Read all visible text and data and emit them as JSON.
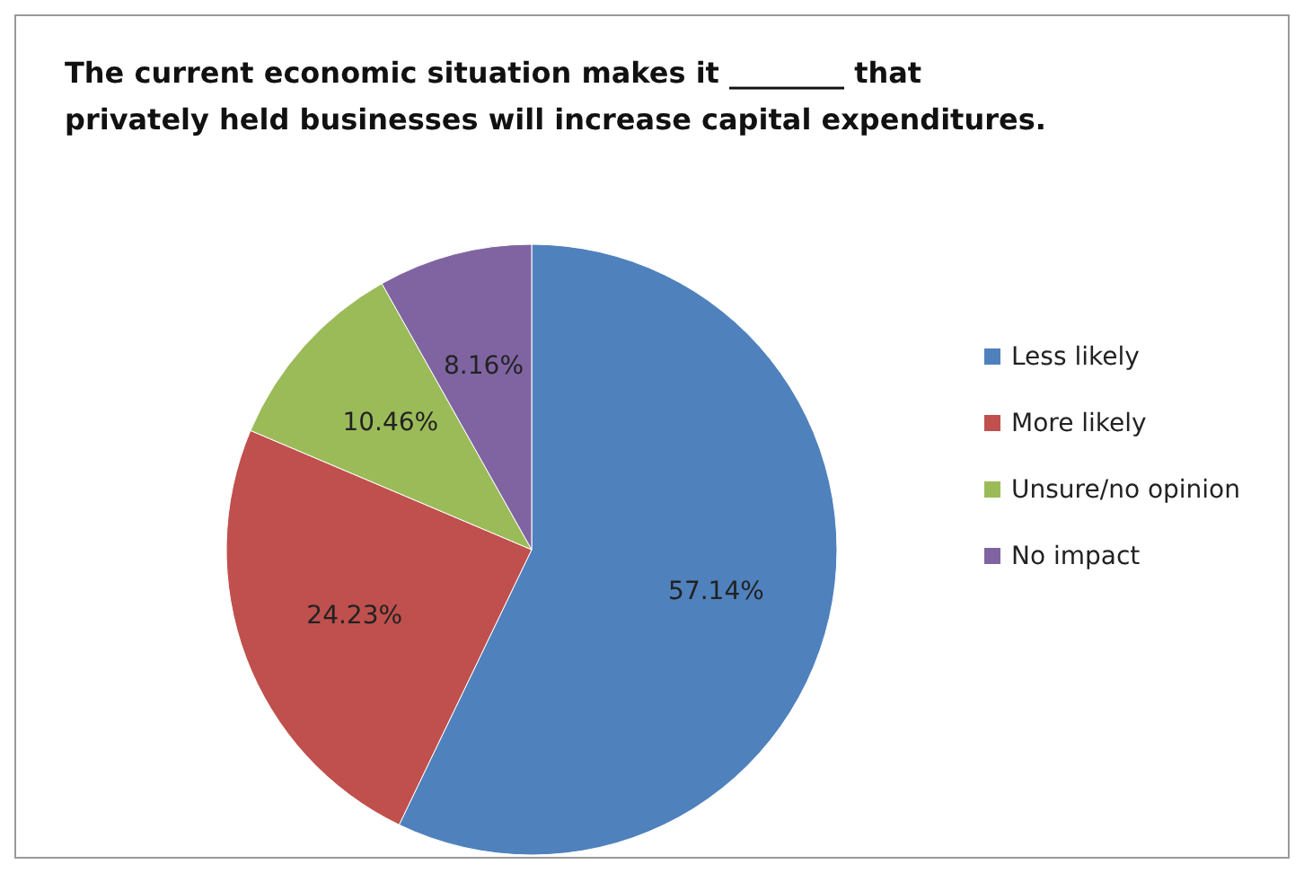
{
  "chart_data": {
    "type": "pie",
    "title": "The current economic situation makes it ________ that privately held businesses will increase capital expenditures.",
    "categories": [
      "Less likely",
      "More likely",
      "Unsure/no opinion",
      "No impact"
    ],
    "values": [
      57.14,
      24.23,
      10.46,
      8.16
    ],
    "colors": [
      "#4f81bd",
      "#c0504d",
      "#9bbb59",
      "#8064a2"
    ],
    "value_labels": [
      "57.14%",
      "24.23%",
      "10.46%",
      "8.16%"
    ],
    "legend": "right"
  }
}
